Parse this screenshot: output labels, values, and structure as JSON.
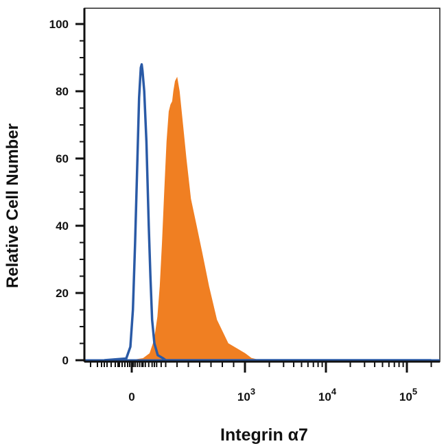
{
  "chart_data": {
    "type": "area",
    "xlabel": "Integrin α7",
    "ylabel": "Relative Cell Number",
    "x_scale": "biexponential",
    "ylim": [
      0,
      100
    ],
    "y_ticks": [
      0,
      20,
      40,
      60,
      80,
      100
    ],
    "x_ticks": [
      {
        "value": 0,
        "base": "0",
        "exp": ""
      },
      {
        "value": 1000,
        "base": "10",
        "exp": "3"
      },
      {
        "value": 10000,
        "base": "10",
        "exp": "4"
      },
      {
        "value": 100000,
        "base": "10",
        "exp": "5"
      }
    ],
    "series": [
      {
        "style": "outline",
        "color": "#2a5aa6",
        "points": [
          [
            -200,
            0
          ],
          [
            -40,
            0.5
          ],
          [
            -10,
            4
          ],
          [
            10,
            15
          ],
          [
            30,
            35
          ],
          [
            50,
            60
          ],
          [
            65,
            78
          ],
          [
            80,
            87
          ],
          [
            88,
            88
          ],
          [
            95,
            86
          ],
          [
            110,
            80
          ],
          [
            130,
            65
          ],
          [
            150,
            40
          ],
          [
            165,
            25
          ],
          [
            180,
            12
          ],
          [
            200,
            5
          ],
          [
            230,
            1.5
          ],
          [
            280,
            0.5
          ],
          [
            300,
            0
          ],
          [
            200000,
            0
          ]
        ]
      },
      {
        "style": "filled",
        "color": "#f07f22",
        "points": [
          [
            -200,
            0
          ],
          [
            0,
            0
          ],
          [
            100,
            0.5
          ],
          [
            160,
            2
          ],
          [
            200,
            6
          ],
          [
            230,
            13
          ],
          [
            250,
            22
          ],
          [
            270,
            35
          ],
          [
            290,
            50
          ],
          [
            310,
            65
          ],
          [
            330,
            74
          ],
          [
            345,
            76
          ],
          [
            360,
            77
          ],
          [
            370,
            80
          ],
          [
            385,
            83
          ],
          [
            400,
            84
          ],
          [
            420,
            80
          ],
          [
            450,
            70
          ],
          [
            480,
            60
          ],
          [
            520,
            48
          ],
          [
            570,
            40
          ],
          [
            620,
            32
          ],
          [
            680,
            22
          ],
          [
            750,
            12
          ],
          [
            850,
            5
          ],
          [
            1000,
            2
          ],
          [
            1200,
            0.6
          ],
          [
            1500,
            0
          ],
          [
            200000,
            0
          ]
        ]
      }
    ]
  }
}
